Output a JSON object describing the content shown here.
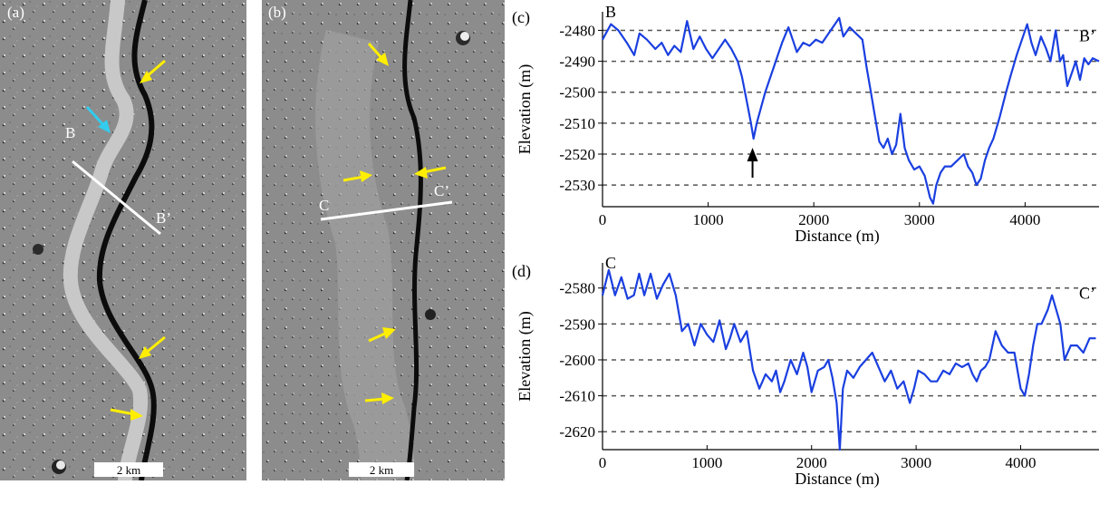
{
  "panels": {
    "a": {
      "label": "(a)",
      "point_start": "B",
      "point_end": "B’",
      "scale_bar": "2 km",
      "arrow_colors": [
        "#ffee00",
        "#33ccee"
      ]
    },
    "b": {
      "label": "(b)",
      "point_start": "C",
      "point_end": "C’",
      "scale_bar": "2 km",
      "arrow_color": "#ffee00"
    }
  },
  "colors": {
    "profile_line": "#1a3fe0",
    "gridline": "#555555",
    "terrain": "#8c8c8c"
  },
  "chart_data": [
    {
      "type": "line",
      "panel_label": "(c)",
      "start_label": "B",
      "end_label": "B’",
      "xlabel": "Distance (m)",
      "ylabel": "Elevation (m)",
      "xlim": [
        0,
        4700
      ],
      "ylim": [
        -2537,
        -2474
      ],
      "xticks": [
        0,
        1000,
        2000,
        3000,
        4000
      ],
      "yticks": [
        -2480,
        -2490,
        -2500,
        -2510,
        -2520,
        -2530
      ],
      "grid": "horizontal-dashed",
      "annotation": "black arrow marking the low point near 1400 m",
      "annotation_x": 1420,
      "x": [
        0,
        80,
        150,
        230,
        300,
        350,
        420,
        500,
        560,
        620,
        680,
        740,
        800,
        860,
        920,
        980,
        1040,
        1100,
        1160,
        1220,
        1280,
        1320,
        1360,
        1400,
        1430,
        1460,
        1500,
        1540,
        1580,
        1620,
        1660,
        1700,
        1760,
        1800,
        1840,
        1900,
        1960,
        2020,
        2080,
        2140,
        2200,
        2240,
        2280,
        2340,
        2400,
        2460,
        2500,
        2540,
        2580,
        2620,
        2660,
        2700,
        2740,
        2780,
        2820,
        2860,
        2900,
        2950,
        3000,
        3050,
        3100,
        3130,
        3160,
        3200,
        3240,
        3300,
        3360,
        3420,
        3460,
        3500,
        3540,
        3580,
        3620,
        3660,
        3700,
        3760,
        3820,
        3860,
        3920,
        3980,
        4020,
        4060,
        4100,
        4150,
        4200,
        4240,
        4290,
        4330,
        4360,
        4400,
        4440,
        4480,
        4520,
        4560,
        4600,
        4640,
        4700
      ],
      "y": [
        -2483,
        -2478,
        -2480,
        -2484,
        -2488,
        -2481,
        -2483,
        -2486,
        -2484,
        -2488,
        -2485,
        -2487,
        -2477,
        -2486,
        -2482,
        -2486,
        -2489,
        -2486,
        -2483,
        -2486,
        -2490,
        -2495,
        -2502,
        -2509,
        -2515,
        -2510,
        -2505,
        -2500,
        -2496,
        -2492,
        -2488,
        -2484,
        -2479,
        -2483,
        -2487,
        -2484,
        -2485,
        -2483,
        -2484,
        -2481,
        -2478,
        -2476,
        -2482,
        -2479,
        -2481,
        -2483,
        -2492,
        -2500,
        -2508,
        -2516,
        -2518,
        -2515,
        -2520,
        -2517,
        -2507,
        -2518,
        -2522,
        -2525,
        -2524,
        -2527,
        -2534,
        -2536,
        -2530,
        -2526,
        -2524,
        -2524,
        -2522,
        -2520,
        -2524,
        -2526,
        -2530,
        -2528,
        -2522,
        -2518,
        -2515,
        -2508,
        -2500,
        -2495,
        -2488,
        -2482,
        -2478,
        -2484,
        -2488,
        -2482,
        -2486,
        -2490,
        -2480,
        -2490,
        -2488,
        -2498,
        -2494,
        -2490,
        -2496,
        -2489,
        -2491,
        -2489,
        -2490
      ]
    },
    {
      "type": "line",
      "panel_label": "(d)",
      "start_label": "C",
      "end_label": "C’",
      "xlabel": "Distance (m)",
      "ylabel": "Elevation (m)",
      "xlim": [
        0,
        4750
      ],
      "ylim": [
        -2625,
        -2573
      ],
      "xticks": [
        0,
        1000,
        2000,
        3000,
        4000
      ],
      "yticks": [
        -2580,
        -2590,
        -2600,
        -2610,
        -2620
      ],
      "grid": "horizontal-dashed",
      "x": [
        0,
        60,
        120,
        180,
        240,
        300,
        350,
        400,
        460,
        520,
        580,
        640,
        700,
        760,
        820,
        880,
        940,
        1000,
        1060,
        1120,
        1180,
        1220,
        1260,
        1320,
        1380,
        1440,
        1500,
        1560,
        1620,
        1660,
        1700,
        1740,
        1800,
        1860,
        1920,
        1960,
        2000,
        2060,
        2120,
        2160,
        2200,
        2240,
        2270,
        2300,
        2340,
        2400,
        2460,
        2520,
        2580,
        2640,
        2700,
        2760,
        2820,
        2880,
        2940,
        2980,
        3020,
        3080,
        3140,
        3200,
        3260,
        3320,
        3380,
        3440,
        3500,
        3540,
        3580,
        3620,
        3660,
        3700,
        3760,
        3820,
        3880,
        3940,
        4000,
        4040,
        4080,
        4120,
        4160,
        4200,
        4260,
        4300,
        4340,
        4380,
        4420,
        4480,
        4540,
        4600,
        4660,
        4720
      ],
      "y": [
        -2582,
        -2575,
        -2582,
        -2577,
        -2583,
        -2582,
        -2576,
        -2582,
        -2576,
        -2583,
        -2579,
        -2576,
        -2582,
        -2592,
        -2590,
        -2596,
        -2590,
        -2593,
        -2595,
        -2589,
        -2597,
        -2594,
        -2590,
        -2595,
        -2592,
        -2603,
        -2608,
        -2604,
        -2606,
        -2603,
        -2609,
        -2606,
        -2600,
        -2604,
        -2598,
        -2602,
        -2609,
        -2603,
        -2602,
        -2600,
        -2605,
        -2612,
        -2625,
        -2608,
        -2603,
        -2605,
        -2602,
        -2600,
        -2598,
        -2602,
        -2606,
        -2603,
        -2608,
        -2606,
        -2612,
        -2608,
        -2603,
        -2604,
        -2606,
        -2606,
        -2603,
        -2604,
        -2601,
        -2602,
        -2601,
        -2604,
        -2606,
        -2603,
        -2602,
        -2600,
        -2592,
        -2596,
        -2598,
        -2598,
        -2608,
        -2610,
        -2604,
        -2596,
        -2590,
        -2590,
        -2586,
        -2582,
        -2586,
        -2590,
        -2600,
        -2596,
        -2596,
        -2598,
        -2594,
        -2594
      ]
    }
  ]
}
